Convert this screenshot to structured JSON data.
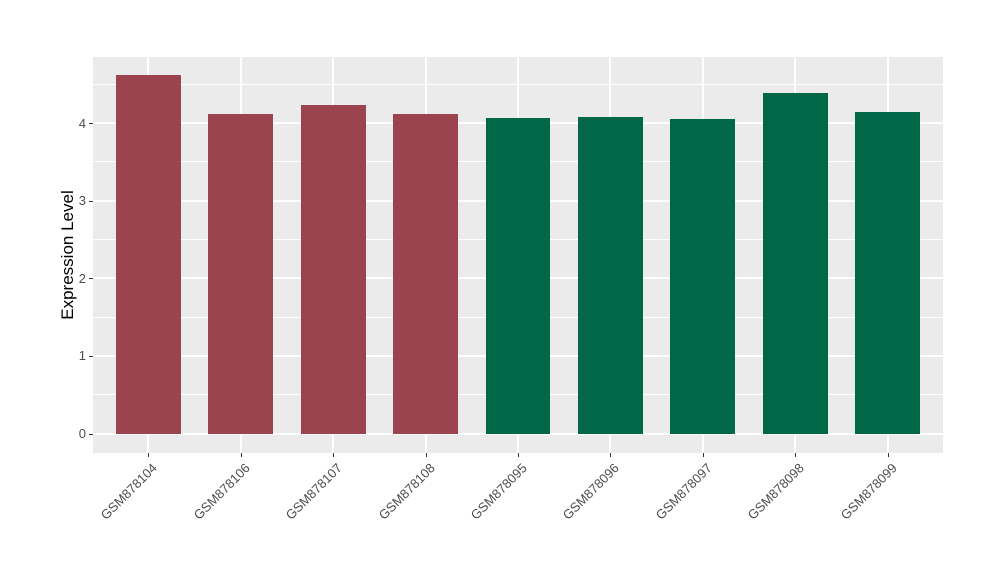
{
  "figure": {
    "background": "#ffffff"
  },
  "chart_data": {
    "type": "bar",
    "title": "",
    "xlabel": "",
    "ylabel": "Expression Level",
    "categories": [
      "GSM878104",
      "GSM878106",
      "GSM878107",
      "GSM878108",
      "GSM878095",
      "GSM878096",
      "GSM878097",
      "GSM878098",
      "GSM878099"
    ],
    "values": [
      4.62,
      4.12,
      4.23,
      4.12,
      4.06,
      4.08,
      4.05,
      4.38,
      4.14
    ],
    "bar_colors": [
      "#9B4450",
      "#9B4450",
      "#9B4450",
      "#9B4450",
      "#006747",
      "#006747",
      "#006747",
      "#006747",
      "#006747"
    ],
    "group_colors": {
      "maroon": "#9B4450",
      "green": "#006747"
    },
    "yticks": [
      0,
      1,
      2,
      3,
      4
    ],
    "ytick_labels": [
      "0",
      "1",
      "2",
      "3",
      "4"
    ],
    "minor_yticks": [
      0.5,
      1.5,
      2.5,
      3.5,
      4.5
    ],
    "ylim": [
      -0.25,
      4.85
    ],
    "bar_width_fraction": 0.7,
    "grid": true,
    "legend": false,
    "style": {
      "panel_bg": "#EBEBEB",
      "grid_color": "#FFFFFF",
      "tick_mark_color": "#333333",
      "axis_text_color": "#4D4D4D",
      "axis_title_color": "#000000"
    }
  }
}
